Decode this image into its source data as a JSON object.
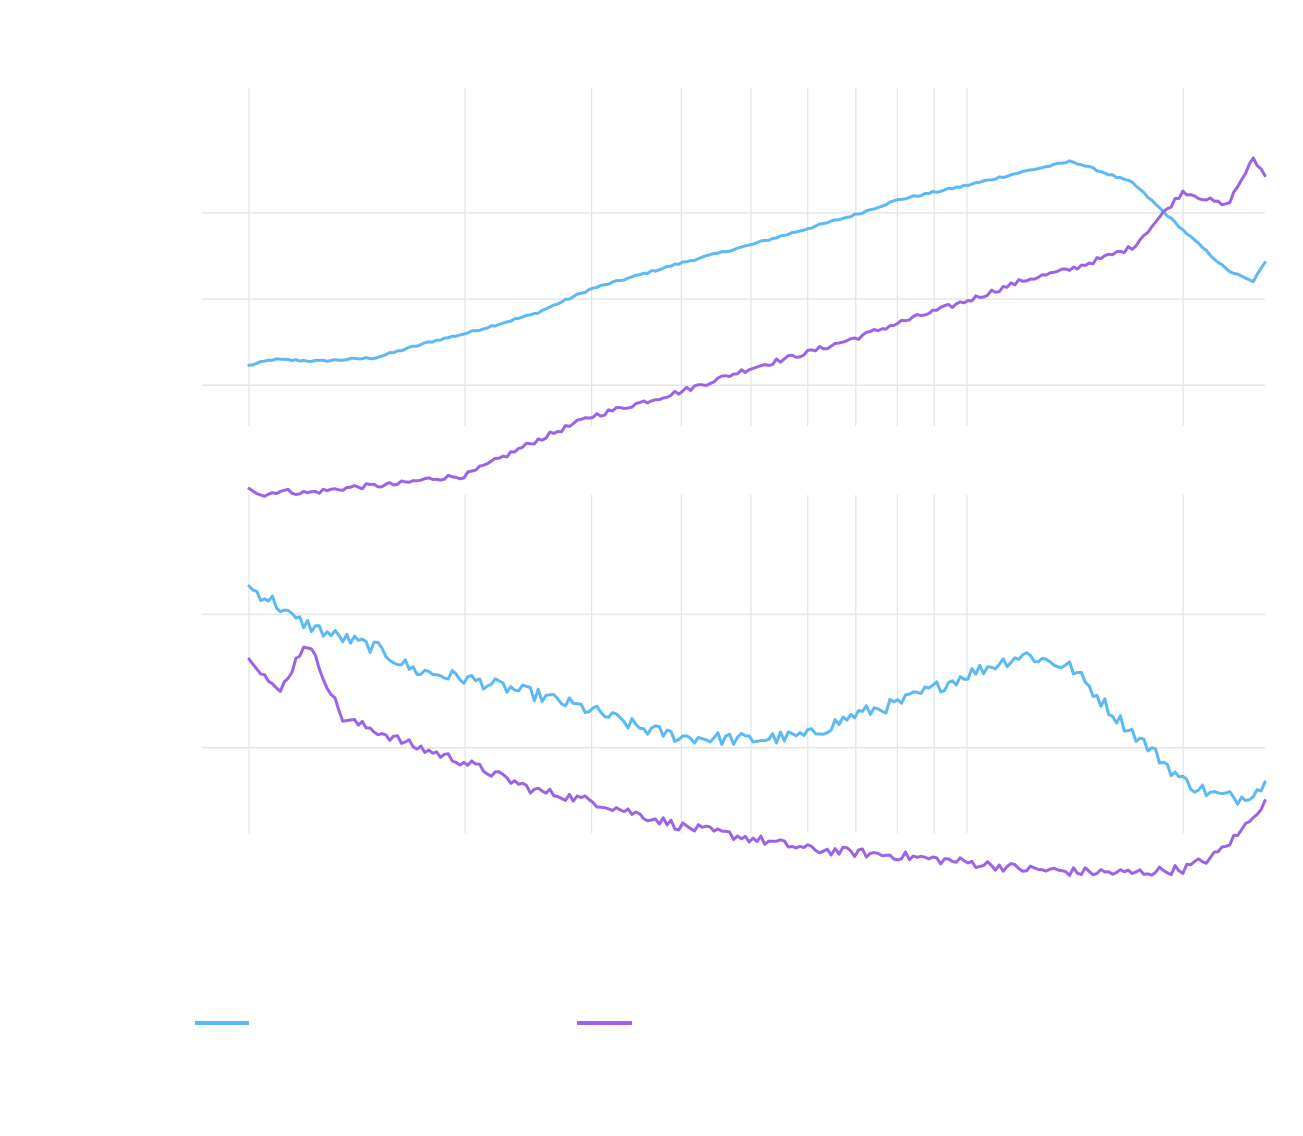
{
  "colors": {
    "series_a": "#5bb9f5",
    "series_b": "#9b64e6",
    "grid": "#e6e6e6"
  },
  "chart_data": [
    {
      "type": "line",
      "panel": "top",
      "title": "",
      "xlabel": "",
      "ylabel": "",
      "x_scale": "log",
      "x_range": [
        1,
        26
      ],
      "y_range": [
        0,
        3.9
      ],
      "y_gridlines": [
        1,
        2,
        3
      ],
      "grid": true,
      "series": [
        {
          "color_key": "series_a",
          "x": [
            1,
            1.08,
            1.25,
            1.5,
            1.8,
            2,
            2.5,
            3,
            4,
            5,
            6,
            7,
            8,
            10,
            12,
            14,
            17,
            20,
            23,
            25,
            26
          ],
          "y": [
            1.23,
            1.3,
            1.28,
            1.32,
            1.51,
            1.6,
            1.83,
            2.12,
            2.42,
            2.63,
            2.82,
            2.98,
            3.15,
            3.32,
            3.48,
            3.6,
            3.35,
            2.8,
            2.34,
            2.2,
            2.42
          ],
          "noise": 0.012
        },
        {
          "color_key": "series_b",
          "x": [
            1,
            1.05,
            1.1,
            1.2,
            1.4,
            1.6,
            1.8,
            2,
            2.5,
            3,
            4,
            5,
            6,
            7,
            8,
            10,
            12,
            14,
            17,
            20,
            23,
            25,
            26
          ],
          "y": [
            -0.18,
            -0.28,
            -0.22,
            -0.25,
            -0.18,
            -0.15,
            -0.08,
            -0.05,
            0.35,
            0.64,
            0.93,
            1.2,
            1.38,
            1.55,
            1.72,
            1.98,
            2.22,
            2.35,
            2.6,
            3.25,
            3.08,
            3.62,
            3.45
          ],
          "noise": 0.03
        }
      ]
    },
    {
      "type": "line",
      "panel": "bottom",
      "title": "",
      "xlabel": "",
      "ylabel": "",
      "x_scale": "log",
      "x_range": [
        1,
        26
      ],
      "y_range": [
        0,
        2.55
      ],
      "y_gridlines": [
        1,
        2
      ],
      "grid": true,
      "series": [
        {
          "color_key": "series_a",
          "x": [
            1,
            1.08,
            1.15,
            1.3,
            1.5,
            1.7,
            2,
            2.5,
            3,
            3.5,
            4,
            5,
            6,
            7,
            8,
            10,
            12,
            14,
            15,
            16,
            18,
            20,
            22,
            24,
            26
          ],
          "y": [
            2.2,
            2.1,
            1.97,
            1.85,
            1.75,
            1.58,
            1.52,
            1.4,
            1.28,
            1.15,
            1.08,
            1.06,
            1.09,
            1.25,
            1.33,
            1.55,
            1.7,
            1.6,
            1.42,
            1.25,
            0.99,
            0.75,
            0.65,
            0.62,
            0.72
          ],
          "noise": 0.05
        },
        {
          "color_key": "series_b",
          "x": [
            1,
            1.1,
            1.2,
            1.25,
            1.35,
            1.5,
            1.7,
            2,
            2.5,
            3,
            4,
            5,
            6,
            8,
            10,
            12,
            14,
            17,
            20,
            22,
            24,
            25,
            26
          ],
          "y": [
            1.7,
            1.4,
            1.8,
            1.62,
            1.22,
            1.13,
            1.01,
            0.89,
            0.68,
            0.6,
            0.41,
            0.32,
            0.24,
            0.19,
            0.14,
            0.09,
            0.07,
            0.06,
            0.09,
            0.18,
            0.36,
            0.5,
            0.58
          ],
          "noise": 0.035
        }
      ]
    }
  ],
  "legend": {
    "position": "bottom",
    "items": [
      {
        "color_key": "series_a",
        "label": ""
      },
      {
        "color_key": "series_b",
        "label": ""
      }
    ]
  }
}
